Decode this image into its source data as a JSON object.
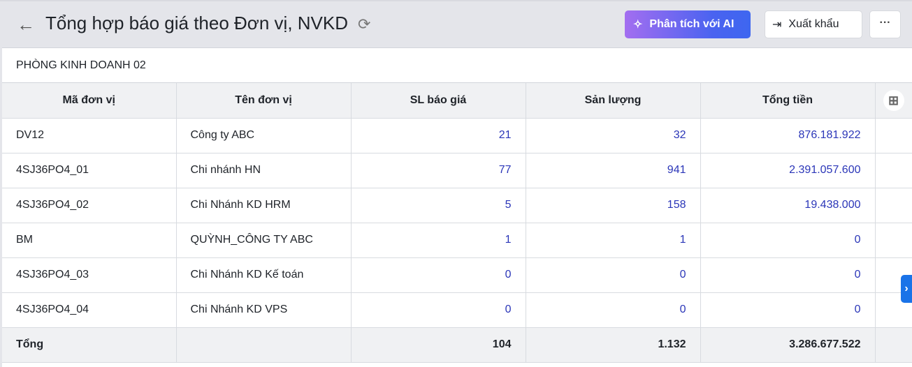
{
  "header": {
    "title": "Tổng hợp báo giá theo Đơn vị, NVKD",
    "ai_button": "Phân tích với AI",
    "export_button": "Xuất khẩu",
    "more": "···"
  },
  "section": "PHÒNG KINH DOANH 02",
  "table": {
    "columns": [
      "Mã đơn vị",
      "Tên đơn vị",
      "SL báo giá",
      "Sản lượng",
      "Tổng tiền"
    ],
    "rows": [
      [
        "DV12",
        "Công ty ABC",
        "21",
        "32",
        "876.181.922"
      ],
      [
        "4SJ36PO4_01",
        "Chi nhánh HN",
        "77",
        "941",
        "2.391.057.600"
      ],
      [
        "4SJ36PO4_02",
        "Chi Nhánh KD HRM",
        "5",
        "158",
        "19.438.000"
      ],
      [
        "BM",
        "QUỲNH_CÔNG TY ABC",
        "1",
        "1",
        "0"
      ],
      [
        "4SJ36PO4_03",
        "Chi Nhánh KD Kế toán",
        "0",
        "0",
        "0"
      ],
      [
        "4SJ36PO4_04",
        "Chi Nhánh KD VPS",
        "0",
        "0",
        "0"
      ]
    ],
    "total": [
      "Tổng",
      "",
      "104",
      "1.132",
      "3.286.677.522"
    ]
  }
}
